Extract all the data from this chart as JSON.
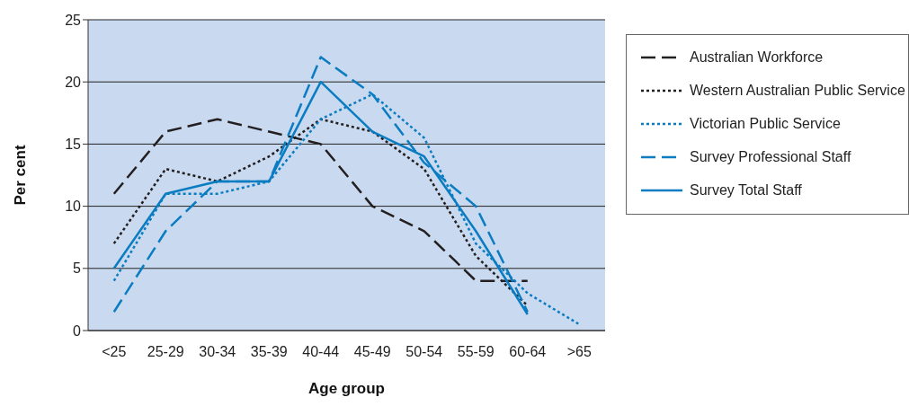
{
  "chart_data": {
    "type": "line",
    "xlabel": "Age group",
    "ylabel": "Per cent",
    "categories": [
      "<25",
      "25-29",
      "30-34",
      "35-39",
      "40-44",
      "45-49",
      "50-54",
      "55-59",
      "60-64",
      ">65"
    ],
    "series": [
      {
        "name": "Australian Workforce",
        "color": "#231f20",
        "line_style": "dashed",
        "values": [
          11,
          16,
          17,
          16,
          15,
          10,
          8,
          4,
          4,
          null
        ]
      },
      {
        "name": "Western Australian Public Service",
        "color": "#231f20",
        "line_style": "dotted",
        "values": [
          7,
          13,
          12,
          14,
          17,
          16,
          13,
          6,
          2,
          null
        ]
      },
      {
        "name": "Victorian Public Service",
        "color": "#0a7cc1",
        "line_style": "dotted",
        "values": [
          4,
          11,
          11,
          12,
          17,
          19,
          15.5,
          7,
          3,
          0.5
        ]
      },
      {
        "name": "Survey Professional Staff",
        "color": "#0a7cc1",
        "line_style": "dashed",
        "values": [
          1.5,
          8,
          12,
          12,
          22,
          19,
          13.5,
          10,
          1.5,
          null
        ]
      },
      {
        "name": "Survey Total Staff",
        "color": "#0a7cc1",
        "line_style": "solid",
        "values": [
          5,
          11,
          12,
          12,
          20,
          16,
          14,
          8,
          1.3,
          null
        ]
      }
    ],
    "ylim": [
      0,
      25
    ],
    "yticks": [
      0,
      5,
      10,
      15,
      20,
      25
    ],
    "grid": "y",
    "legend": "top right",
    "marker": "none"
  }
}
